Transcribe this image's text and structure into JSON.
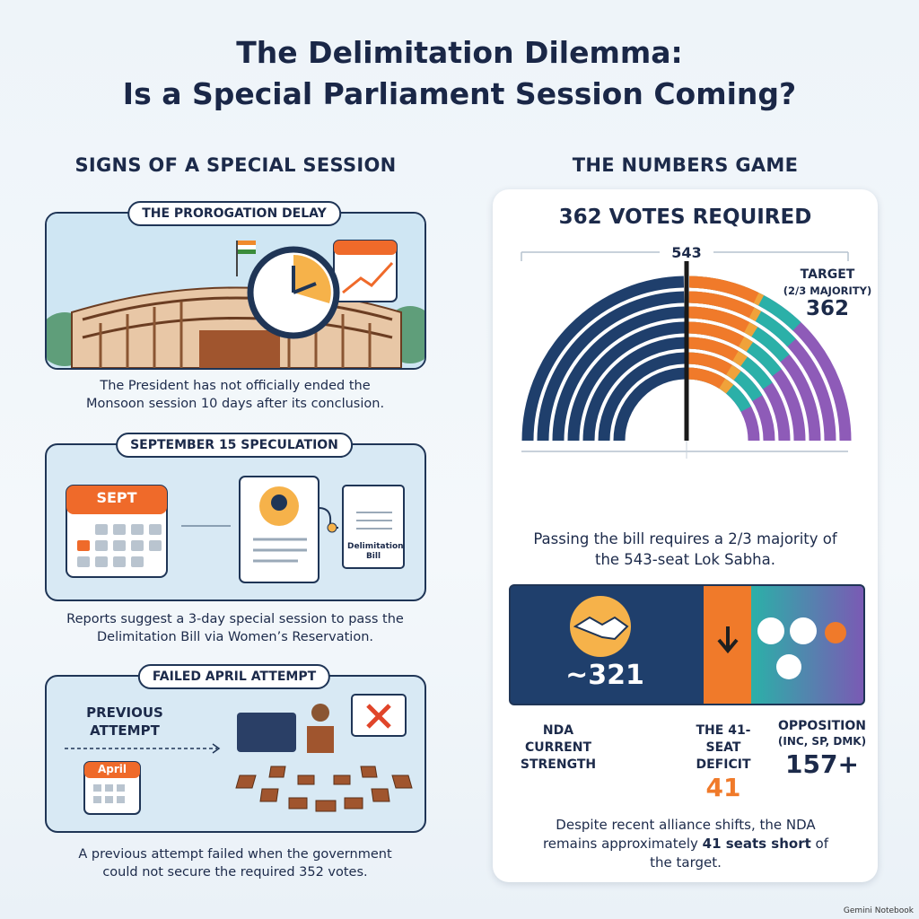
{
  "header": {
    "title_line1": "The Delimitation Dilemma:",
    "title_line2": "Is a Special Parliament Session Coming?"
  },
  "left": {
    "heading": "SIGNS OF A SPECIAL SESSION",
    "cards": [
      {
        "label": "THE PROROGATION DELAY",
        "caption": "The President has not officially ended the Monsoon session 10 days after its conclusion."
      },
      {
        "label": "SEPTEMBER 15 SPECULATION",
        "calendar_month": "SEPT",
        "document": "Delimitation Bill",
        "caption": "Reports suggest a 3-day special session to pass the Delimitation Bill via Women’s Reservation."
      },
      {
        "label": "FAILED APRIL ATTEMPT",
        "side_text": "PREVIOUS ATTEMPT",
        "calendar_month": "April",
        "caption": "A previous attempt failed when the government could not secure the required 352 votes."
      }
    ]
  },
  "right": {
    "heading": "THE NUMBERS GAME",
    "panel_title": "362 VOTES REQUIRED",
    "total_seats": "543",
    "target_label": "TARGET",
    "target_sub": "(2/3 MAJORITY)",
    "target_value": "362",
    "explanation": "Passing the bill requires a 2/3 majority of the 543-seat Lok Sabha.",
    "bar": {
      "nda_value": "~321",
      "nda_label": "NDA CURRENT STRENGTH",
      "deficit_label": "THE 41-SEAT DEFICIT",
      "deficit_value": "41",
      "opposition_label": "OPPOSITION",
      "opposition_sub": "(INC, SP, DMK)",
      "opposition_value": "157+"
    },
    "footer": {
      "text_before": "Despite recent alliance shifts, the NDA remains approximately ",
      "text_bold": "41 seats short",
      "text_after": " of the target."
    }
  },
  "watermark": "Gemini Notebook"
}
